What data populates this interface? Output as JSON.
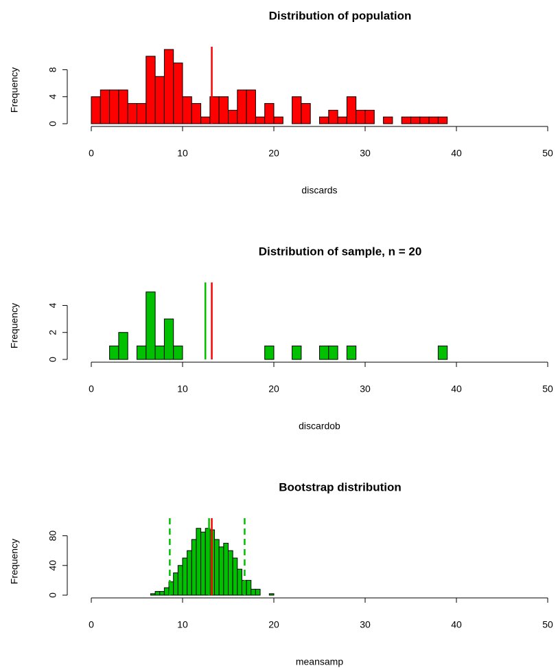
{
  "chart_data": [
    {
      "type": "histogram",
      "title": "Distribution of population",
      "xlabel": "discards",
      "ylabel": "Frequency",
      "bins": [
        0,
        1,
        2,
        3,
        4,
        5,
        6,
        7,
        8,
        9,
        10,
        11,
        12,
        13,
        14,
        15,
        16,
        17,
        18,
        19,
        20,
        21,
        22,
        23,
        24,
        25,
        26,
        27,
        28,
        29,
        30,
        31,
        32,
        33,
        34,
        35,
        36,
        37,
        38,
        39
      ],
      "counts": [
        4,
        5,
        5,
        5,
        3,
        3,
        10,
        7,
        11,
        9,
        4,
        3,
        1,
        4,
        4,
        2,
        5,
        5,
        1,
        3,
        1,
        0,
        4,
        3,
        0,
        1,
        2,
        1,
        4,
        2,
        2,
        0,
        1,
        0,
        1,
        1,
        1,
        1,
        1
      ],
      "color": "#ff0000",
      "xlim": [
        0,
        50
      ],
      "ylim": [
        0,
        11
      ],
      "xticks": [
        0,
        10,
        20,
        30,
        40,
        50
      ],
      "yticks": [
        0,
        4,
        8
      ],
      "vlines": [
        {
          "value": 13.2,
          "color": "#ff0000",
          "style": "solid"
        }
      ]
    },
    {
      "type": "histogram",
      "title": "Distribution of sample, n = 20",
      "xlabel": "discardob",
      "ylabel": "Frequency",
      "bins": [
        2,
        3,
        4,
        5,
        6,
        7,
        8,
        9,
        10,
        11,
        12,
        13,
        14,
        15,
        16,
        17,
        18,
        19,
        20,
        21,
        22,
        23,
        24,
        25,
        26,
        27,
        28,
        29,
        30,
        31,
        32,
        33,
        34,
        35,
        36,
        37,
        38,
        39
      ],
      "counts": [
        1,
        2,
        0,
        1,
        5,
        1,
        3,
        1,
        0,
        0,
        0,
        0,
        0,
        0,
        0,
        0,
        0,
        1,
        0,
        0,
        1,
        0,
        0,
        1,
        1,
        0,
        1,
        0,
        0,
        0,
        0,
        0,
        0,
        0,
        0,
        0,
        1
      ],
      "color": "#00c000",
      "xlim": [
        0,
        50
      ],
      "ylim": [
        0,
        5.5
      ],
      "xticks": [
        0,
        10,
        20,
        30,
        40,
        50
      ],
      "yticks": [
        0,
        2,
        4
      ],
      "vlines": [
        {
          "value": 12.5,
          "color": "#00c000",
          "style": "solid"
        },
        {
          "value": 13.2,
          "color": "#ff0000",
          "style": "solid"
        }
      ]
    },
    {
      "type": "histogram",
      "title": "Bootstrap distribution",
      "xlabel": "meansamp",
      "ylabel": "Frequency",
      "bins": [
        6.5,
        7,
        7.5,
        8,
        8.5,
        9,
        9.5,
        10,
        10.5,
        11,
        11.5,
        12,
        12.5,
        13,
        13.5,
        14,
        14.5,
        15,
        15.5,
        16,
        16.5,
        17,
        17.5,
        18,
        18.5,
        19,
        19.5,
        20
      ],
      "counts": [
        2,
        5,
        5,
        10,
        18,
        30,
        40,
        50,
        60,
        75,
        90,
        85,
        90,
        88,
        75,
        65,
        70,
        60,
        50,
        35,
        20,
        20,
        8,
        8,
        0,
        0,
        2
      ],
      "color": "#00c000",
      "xlim": [
        0,
        50
      ],
      "ylim": [
        0,
        100
      ],
      "xticks": [
        0,
        10,
        20,
        30,
        40,
        50
      ],
      "yticks": [
        0,
        40,
        80
      ],
      "vlines": [
        {
          "value": 8.6,
          "color": "#00c000",
          "style": "dashed"
        },
        {
          "value": 16.8,
          "color": "#00c000",
          "style": "dashed"
        },
        {
          "value": 12.9,
          "color": "#00c000",
          "style": "solid"
        },
        {
          "value": 13.2,
          "color": "#ff0000",
          "style": "solid"
        }
      ]
    }
  ]
}
